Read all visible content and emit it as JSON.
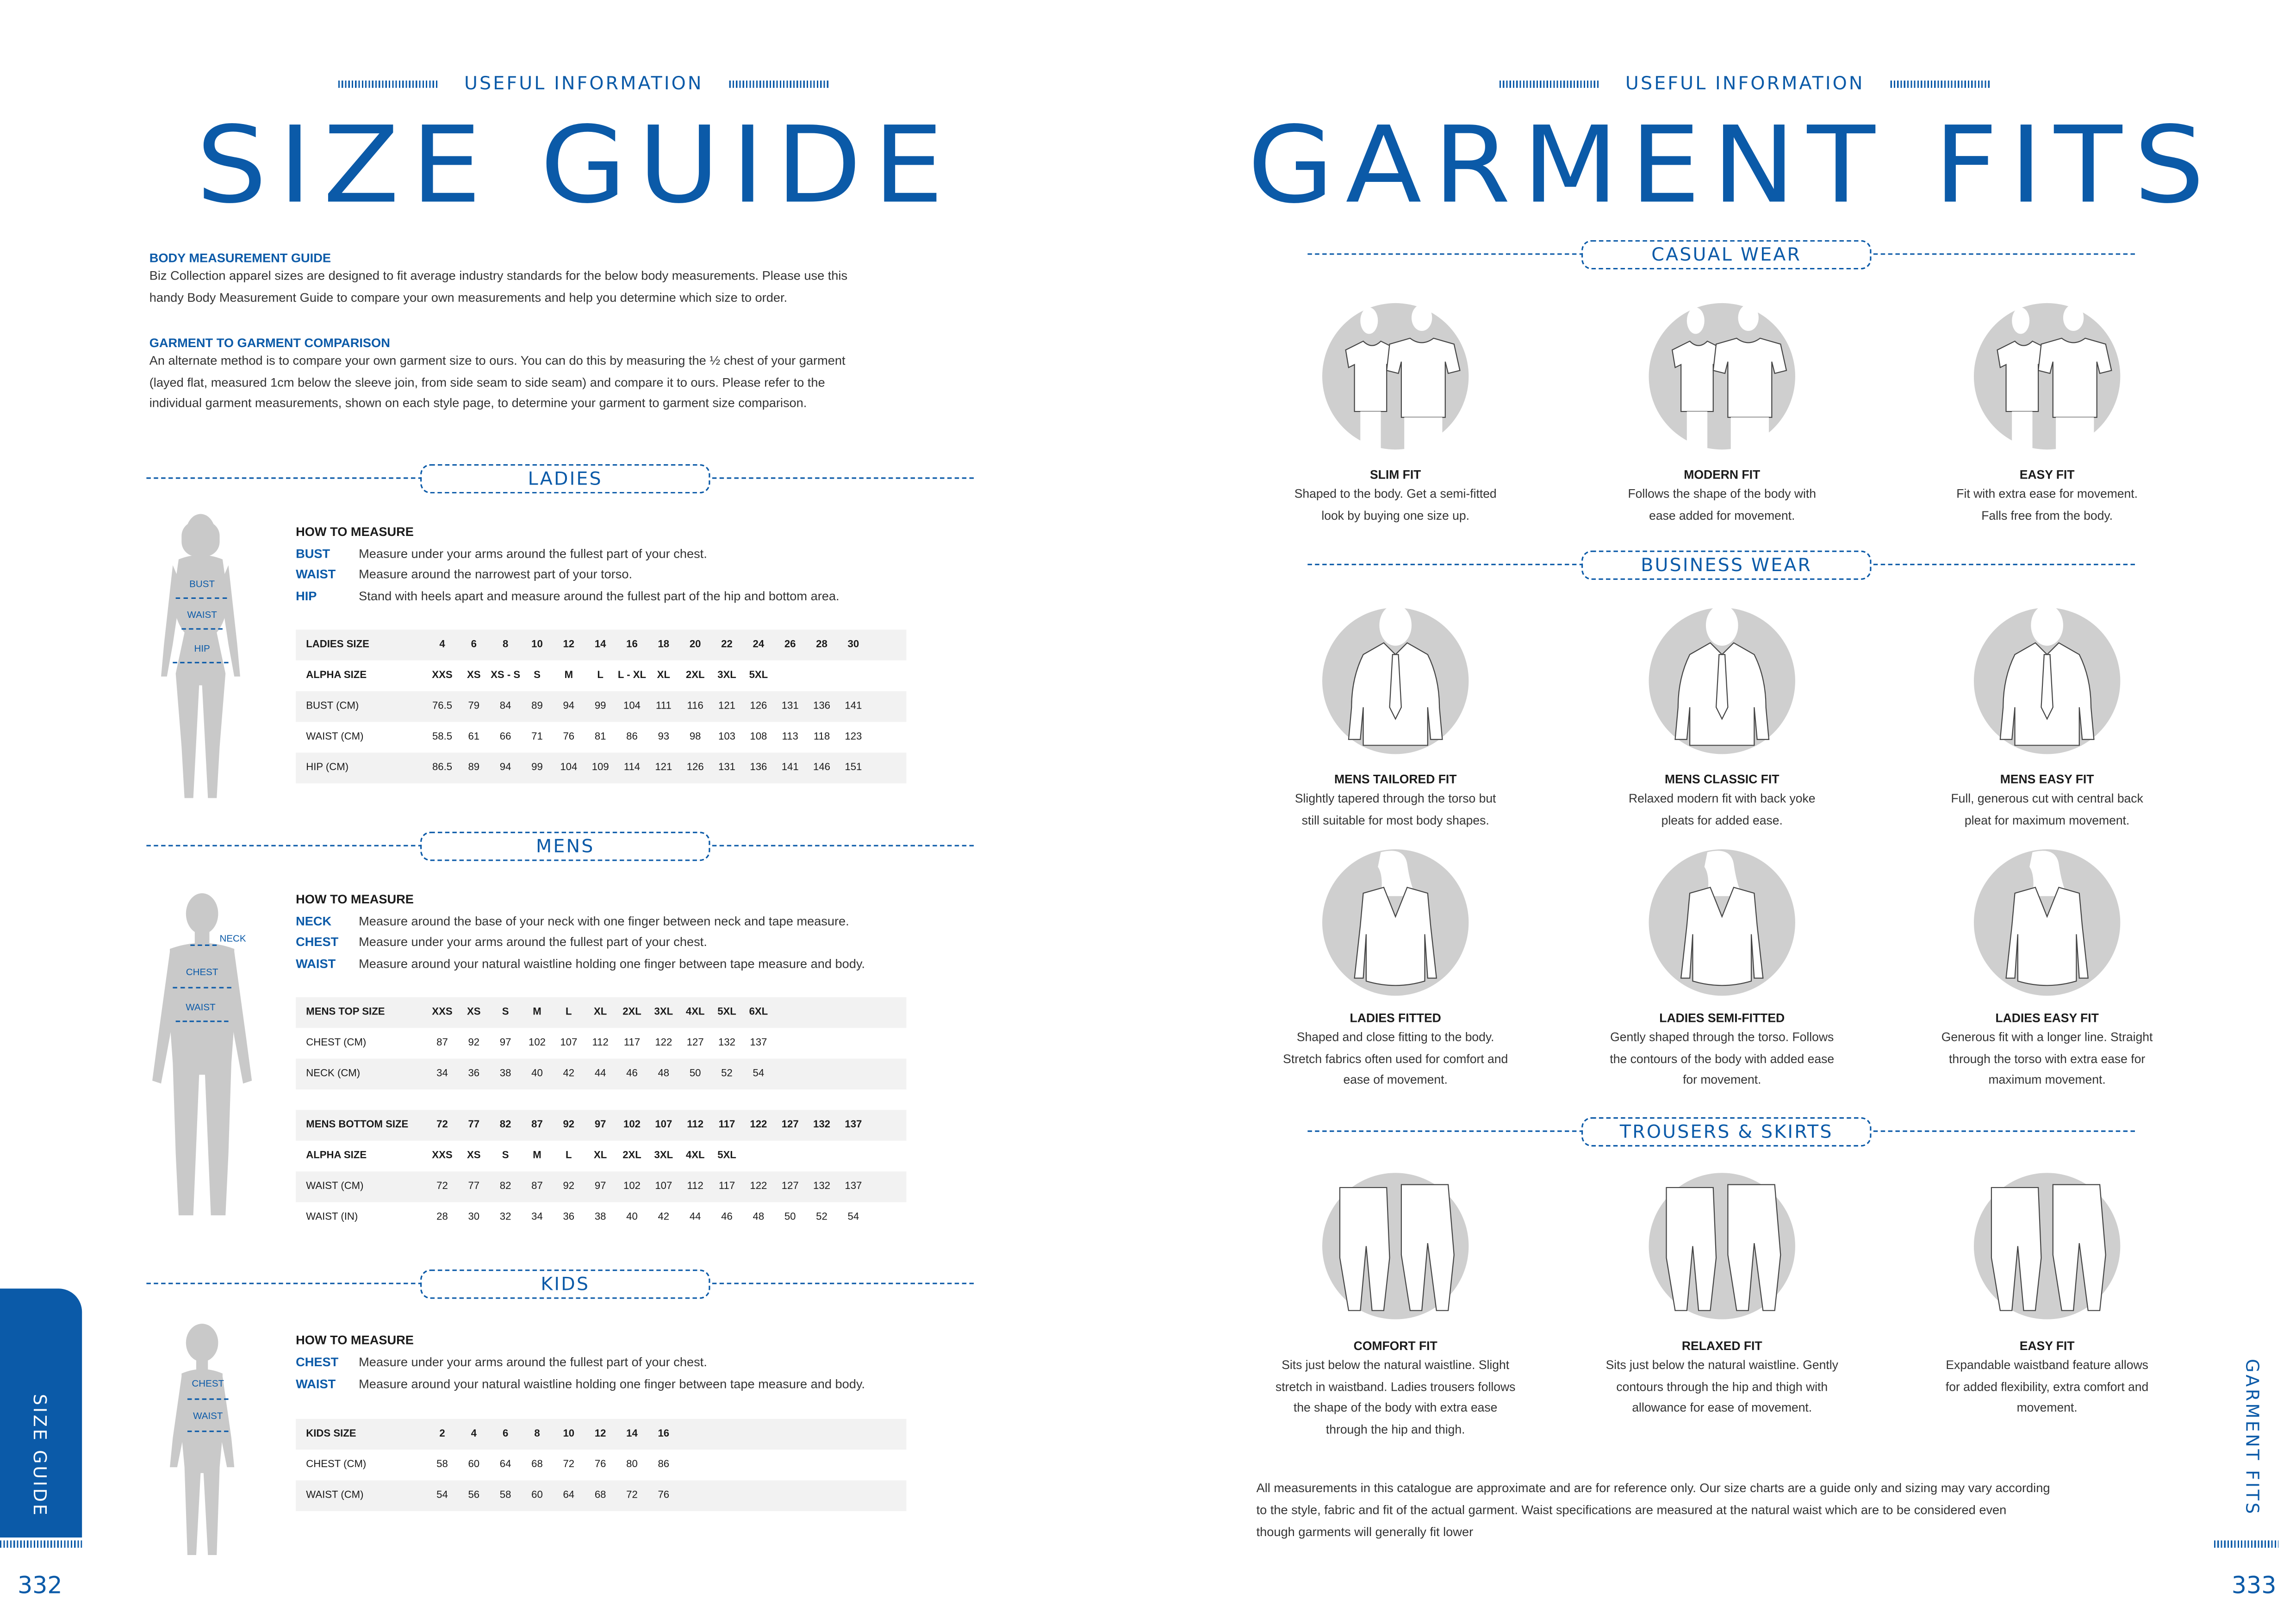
{
  "colors": {
    "accent": "#0b5aa8",
    "table_shade": "#f2f2f2",
    "figure_grey": "#c9c9c9"
  },
  "left_page": {
    "kicker": "USEFUL INFORMATION",
    "title": "SIZE GUIDE",
    "body_guide": {
      "heading": "BODY MEASUREMENT GUIDE",
      "lines": [
        "Biz Collection apparel sizes are designed to fit average industry standards for the below body measurements. Please use this",
        "handy Body Measurement Guide to compare your own measurements and help you determine which size to order."
      ]
    },
    "garment_comparison": {
      "heading": "GARMENT TO GARMENT COMPARISON",
      "lines": [
        "An alternate method is to compare your own garment size to ours. You can do this by measuring the ½ chest of your garment",
        "(layed flat, measured 1cm below the sleeve join, from side seam to side seam) and compare it to ours. Please refer to the",
        "individual garment measurements, shown on each style page, to determine your garment to garment size comparison."
      ]
    },
    "ladies": {
      "section_label": "LADIES",
      "how_to": "HOW TO MEASURE",
      "figure_labels": [
        "BUST",
        "WAIST",
        "HIP"
      ],
      "measures": [
        {
          "key": "BUST",
          "text": "Measure under your arms around the fullest part of your chest."
        },
        {
          "key": "WAIST",
          "text": "Measure around the narrowest part of your torso."
        },
        {
          "key": "HIP",
          "text": "Stand with heels apart and measure around the fullest part of the hip and bottom area."
        }
      ],
      "table": [
        {
          "label": "LADIES SIZE",
          "bold": true,
          "values": [
            "4",
            "6",
            "8",
            "10",
            "12",
            "14",
            "16",
            "18",
            "20",
            "22",
            "24",
            "26",
            "28",
            "30"
          ]
        },
        {
          "label": "ALPHA SIZE",
          "bold": true,
          "values": [
            "XXS",
            "XS",
            "XS - S",
            "S",
            "M",
            "L",
            "L - XL",
            "XL",
            "2XL",
            "3XL",
            "5XL"
          ]
        },
        {
          "label": "BUST (CM)",
          "bold": false,
          "values": [
            "76.5",
            "79",
            "84",
            "89",
            "94",
            "99",
            "104",
            "111",
            "116",
            "121",
            "126",
            "131",
            "136",
            "141"
          ]
        },
        {
          "label": "WAIST (CM)",
          "bold": false,
          "values": [
            "58.5",
            "61",
            "66",
            "71",
            "76",
            "81",
            "86",
            "93",
            "98",
            "103",
            "108",
            "113",
            "118",
            "123"
          ]
        },
        {
          "label": "HIP (CM)",
          "bold": false,
          "values": [
            "86.5",
            "89",
            "94",
            "99",
            "104",
            "109",
            "114",
            "121",
            "126",
            "131",
            "136",
            "141",
            "146",
            "151"
          ]
        }
      ]
    },
    "mens": {
      "section_label": "MENS",
      "how_to": "HOW TO MEASURE",
      "figure_labels": [
        "NECK",
        "CHEST",
        "WAIST"
      ],
      "measures": [
        {
          "key": "NECK",
          "text": "Measure around the base of your neck with one finger between neck and tape measure."
        },
        {
          "key": "CHEST",
          "text": "Measure under your arms around the fullest part of your chest."
        },
        {
          "key": "WAIST",
          "text": "Measure around your natural waistline holding one finger between tape measure and body."
        }
      ],
      "top_table": [
        {
          "label": "MENS TOP SIZE",
          "bold": true,
          "values": [
            "XXS",
            "XS",
            "S",
            "M",
            "L",
            "XL",
            "2XL",
            "3XL",
            "4XL",
            "5XL",
            "6XL"
          ]
        },
        {
          "label": "CHEST (CM)",
          "bold": false,
          "values": [
            "87",
            "92",
            "97",
            "102",
            "107",
            "112",
            "117",
            "122",
            "127",
            "132",
            "137"
          ]
        },
        {
          "label": "NECK (CM)",
          "bold": false,
          "values": [
            "34",
            "36",
            "38",
            "40",
            "42",
            "44",
            "46",
            "48",
            "50",
            "52",
            "54"
          ]
        }
      ],
      "bottom_table": [
        {
          "label": "MENS BOTTOM  SIZE",
          "bold": true,
          "values": [
            "72",
            "77",
            "82",
            "87",
            "92",
            "97",
            "102",
            "107",
            "112",
            "117",
            "122",
            "127",
            "132",
            "137"
          ]
        },
        {
          "label": "ALPHA SIZE",
          "bold": true,
          "values": [
            "XXS",
            "XS",
            "S",
            "M",
            "L",
            "XL",
            "2XL",
            "3XL",
            "4XL",
            "5XL"
          ]
        },
        {
          "label": "WAIST (CM)",
          "bold": false,
          "values": [
            "72",
            "77",
            "82",
            "87",
            "92",
            "97",
            "102",
            "107",
            "112",
            "117",
            "122",
            "127",
            "132",
            "137"
          ]
        },
        {
          "label": "WAIST (IN)",
          "bold": false,
          "values": [
            "28",
            "30",
            "32",
            "34",
            "36",
            "38",
            "40",
            "42",
            "44",
            "46",
            "48",
            "50",
            "52",
            "54"
          ]
        }
      ]
    },
    "kids": {
      "section_label": "KIDS",
      "how_to": "HOW TO MEASURE",
      "figure_labels": [
        "CHEST",
        "WAIST"
      ],
      "measures": [
        {
          "key": "CHEST",
          "text": "Measure under your arms around the fullest part of your chest."
        },
        {
          "key": "WAIST",
          "text": "Measure around your natural waistline holding one finger between tape measure and body."
        }
      ],
      "table": [
        {
          "label": "KIDS SIZE",
          "bold": true,
          "values": [
            "2",
            "4",
            "6",
            "8",
            "10",
            "12",
            "14",
            "16"
          ]
        },
        {
          "label": "CHEST (CM)",
          "bold": false,
          "values": [
            "58",
            "60",
            "64",
            "68",
            "72",
            "76",
            "80",
            "86"
          ]
        },
        {
          "label": "WAIST (CM)",
          "bold": false,
          "values": [
            "54",
            "56",
            "58",
            "60",
            "64",
            "68",
            "72",
            "76"
          ]
        }
      ]
    },
    "side_tab": "SIZE GUIDE",
    "page_number": "332"
  },
  "right_page": {
    "kicker": "USEFUL INFORMATION",
    "title": "GARMENT FITS",
    "sections": [
      {
        "label": "CASUAL WEAR",
        "icon": "tshirt-pair",
        "items": [
          {
            "title": "SLIM FIT",
            "lines": [
              "Shaped to the body. Get a semi-fitted",
              "look by buying one size up."
            ]
          },
          {
            "title": "MODERN FIT",
            "lines": [
              "Follows the shape of the body with",
              "ease added for movement."
            ]
          },
          {
            "title": "EASY FIT",
            "lines": [
              "Fit with extra ease for movement.",
              "Falls free from the body."
            ]
          }
        ]
      },
      {
        "label": "BUSINESS WEAR",
        "icon": "shirt-tie",
        "items": [
          {
            "title": "MENS TAILORED FIT",
            "lines": [
              "Slightly tapered through the torso but",
              "still suitable for most body shapes."
            ]
          },
          {
            "title": "MENS CLASSIC FIT",
            "lines": [
              "Relaxed  modern fit with back yoke",
              "pleats for added ease."
            ]
          },
          {
            "title": "MENS EASY FIT",
            "lines": [
              "Full, generous cut with central back",
              "pleat for maximum movement."
            ]
          }
        ]
      },
      {
        "label": "",
        "icon": "ladies-blouse",
        "items": [
          {
            "title": "LADIES FITTED",
            "lines": [
              "Shaped and close fitting to the body.",
              "Stretch fabrics often used for comfort and",
              "ease of movement."
            ]
          },
          {
            "title": "LADIES SEMI-FITTED",
            "lines": [
              "Gently shaped through the torso. Follows",
              "the contours of the body with added ease",
              "for movement."
            ]
          },
          {
            "title": "LADIES EASY FIT",
            "lines": [
              "Generous fit with a longer line. Straight",
              "through the torso with extra ease for",
              "maximum movement."
            ]
          }
        ]
      },
      {
        "label": "TROUSERS & SKIRTS",
        "icon": "trousers-pair",
        "items": [
          {
            "title": "COMFORT FIT",
            "lines": [
              "Sits just below the natural waistline. Slight",
              "stretch in waistband. Ladies trousers follows",
              "the shape of the body with extra ease",
              "through the hip and thigh."
            ]
          },
          {
            "title": "RELAXED FIT",
            "lines": [
              "Sits just below the natural waistline. Gently",
              "contours through the hip and thigh with",
              "allowance for ease of movement."
            ]
          },
          {
            "title": "EASY FIT",
            "lines": [
              "Expandable waistband feature allows",
              "for added flexibility, extra comfort and",
              "movement."
            ]
          }
        ]
      }
    ],
    "footnote": [
      "All measurements in this catalogue are approximate and are for reference only. Our size charts are a guide only and sizing may vary according",
      "to the style, fabric and fit of the actual garment. Waist specifications are measured at the natural waist which are to be considered even",
      "though garments will generally fit lower"
    ],
    "side_label": "GARMENT FITS",
    "page_number": "333"
  }
}
